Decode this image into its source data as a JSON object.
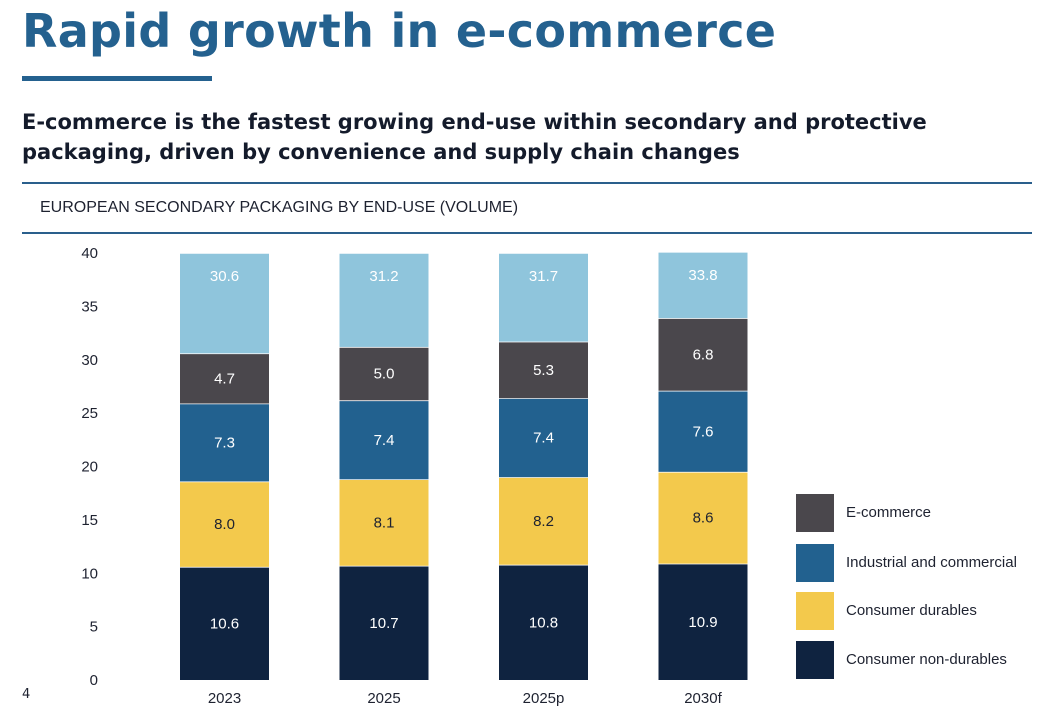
{
  "header": {
    "title": "Rapid growth in e-commerce",
    "subtitle": "E-commerce is the fastest growing end-use within secondary and protective packaging, driven by convenience and supply chain changes"
  },
  "page_number": "4",
  "colors": {
    "brand": "#24618f",
    "e_commerce": "#4a474c",
    "industrial_and_commercial": "#22618f",
    "consumer_durables": "#f3c94c",
    "consumer_non_durables": "#0f2340",
    "other": "#8fc5dc"
  },
  "chart_data": {
    "type": "bar",
    "stacked": true,
    "title": "EUROPEAN SECONDARY PACKAGING BY END-USE (VOLUME)",
    "categories": [
      "2023",
      "2025",
      "2025p",
      "2030f"
    ],
    "ylim": [
      0,
      40
    ],
    "yticks": [
      "0",
      "5",
      "10",
      "15",
      "20",
      "25",
      "30",
      "35",
      "40"
    ],
    "series": [
      {
        "name": "Consumer non-durables",
        "values": [
          10.6,
          10.7,
          10.8,
          10.9
        ],
        "labels": [
          "10.6",
          "10.7",
          "10.8",
          "10.9"
        ],
        "color": "#0f2340",
        "text_color": "#ffffff"
      },
      {
        "name": "Consumer durables",
        "values": [
          8.0,
          8.1,
          8.2,
          8.6
        ],
        "labels": [
          "8.0",
          "8.1",
          "8.2",
          "8.6"
        ],
        "color": "#f3c94c",
        "text_color": "#1e2230"
      },
      {
        "name": "Industrial and commercial",
        "values": [
          7.3,
          7.4,
          7.4,
          7.6
        ],
        "labels": [
          "7.3",
          "7.4",
          "7.4",
          "7.6"
        ],
        "color": "#22618f",
        "text_color": "#ffffff"
      },
      {
        "name": "E-commerce",
        "values": [
          4.7,
          5.0,
          5.3,
          6.8
        ],
        "labels": [
          "4.7",
          "5.0",
          "5.3",
          "6.8"
        ],
        "color": "#4a474c",
        "text_color": "#ffffff"
      },
      {
        "name": "",
        "values": [
          9.4,
          8.8,
          8.3,
          6.2
        ],
        "labels": [
          "30.6",
          "31.2",
          "31.7",
          "33.8"
        ],
        "color": "#8fc5dc",
        "text_color": "#ffffff",
        "label_position": "top"
      }
    ],
    "legend": {
      "position": "bottom-right",
      "entries": [
        "E-commerce",
        "Industrial and commercial",
        "Consumer durables",
        "Consumer non-durables"
      ]
    }
  }
}
